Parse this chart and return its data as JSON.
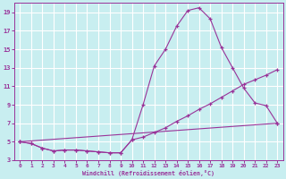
{
  "xlabel": "Windchill (Refroidissement éolien,°C)",
  "background_color": "#c8eef0",
  "grid_color": "#ffffff",
  "line_color": "#993399",
  "xlim": [
    -0.5,
    23.5
  ],
  "ylim": [
    3,
    20
  ],
  "xticks": [
    0,
    1,
    2,
    3,
    4,
    5,
    6,
    7,
    8,
    9,
    10,
    11,
    12,
    13,
    14,
    15,
    16,
    17,
    18,
    19,
    20,
    21,
    22,
    23
  ],
  "yticks": [
    3,
    5,
    7,
    9,
    11,
    13,
    15,
    17,
    19
  ],
  "line1_x": [
    0,
    1,
    2,
    3,
    4,
    5,
    6,
    7,
    8,
    9,
    10,
    11,
    12,
    13,
    14,
    15,
    16,
    17,
    18,
    19,
    20,
    21,
    22,
    23
  ],
  "line1_y": [
    5.0,
    4.8,
    4.3,
    4.0,
    4.1,
    4.1,
    4.0,
    3.9,
    3.8,
    3.8,
    5.2,
    9.0,
    13.2,
    15.0,
    17.5,
    19.2,
    19.5,
    18.3,
    15.2,
    13.0,
    10.8,
    9.2,
    8.9,
    7.0
  ],
  "line2_x": [
    0,
    1,
    2,
    3,
    4,
    5,
    6,
    7,
    8,
    9,
    10,
    11,
    12,
    13,
    14,
    15,
    16,
    17,
    18,
    19,
    20,
    21,
    22,
    23
  ],
  "line2_y": [
    5.0,
    4.8,
    4.3,
    4.0,
    4.1,
    4.1,
    4.0,
    3.9,
    3.8,
    3.8,
    5.2,
    5.5,
    6.0,
    6.5,
    7.2,
    7.8,
    8.5,
    9.1,
    9.8,
    10.5,
    11.2,
    11.7,
    12.2,
    12.8
  ],
  "line3_x": [
    0,
    23
  ],
  "line3_y": [
    5.0,
    7.0
  ]
}
